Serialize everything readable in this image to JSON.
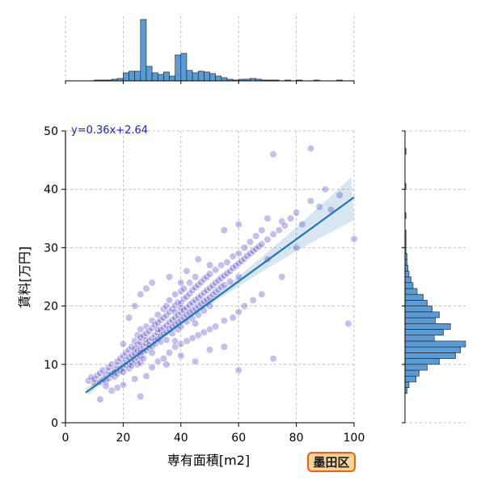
{
  "chart_data": {
    "type": "scatter",
    "xlabel": "専有面積[m2]",
    "ylabel": "賃料[万円]",
    "xlim": [
      0,
      100
    ],
    "ylim": [
      0,
      50
    ],
    "xticks": [
      "0",
      "20",
      "40",
      "60",
      "80",
      "100"
    ],
    "yticks": [
      "0",
      "10",
      "20",
      "30",
      "40",
      "50"
    ],
    "grid": true,
    "regression": {
      "equation": "y=0.36x+2.64",
      "slope": 0.36,
      "intercept": 2.64,
      "x_range": [
        7,
        100
      ]
    },
    "badge": "墨田区",
    "colors": {
      "points": "#3a2fc4",
      "line": "#1f77b4",
      "bars": "#5b9bd5",
      "badge_fill": "#f6d59a",
      "badge_border": "#f06010",
      "equation": "#1f1fbf"
    },
    "x_histogram": {
      "bin_width": 2,
      "bins": [
        {
          "x": 10,
          "count": 1
        },
        {
          "x": 12,
          "count": 1
        },
        {
          "x": 14,
          "count": 1
        },
        {
          "x": 16,
          "count": 2
        },
        {
          "x": 18,
          "count": 3
        },
        {
          "x": 20,
          "count": 10
        },
        {
          "x": 22,
          "count": 12
        },
        {
          "x": 24,
          "count": 12
        },
        {
          "x": 26,
          "count": 76
        },
        {
          "x": 28,
          "count": 18
        },
        {
          "x": 30,
          "count": 10
        },
        {
          "x": 32,
          "count": 8
        },
        {
          "x": 34,
          "count": 11
        },
        {
          "x": 36,
          "count": 6
        },
        {
          "x": 38,
          "count": 32
        },
        {
          "x": 40,
          "count": 34
        },
        {
          "x": 42,
          "count": 13
        },
        {
          "x": 44,
          "count": 10
        },
        {
          "x": 46,
          "count": 12
        },
        {
          "x": 48,
          "count": 11
        },
        {
          "x": 50,
          "count": 9
        },
        {
          "x": 52,
          "count": 6
        },
        {
          "x": 54,
          "count": 4
        },
        {
          "x": 56,
          "count": 2
        },
        {
          "x": 58,
          "count": 1
        },
        {
          "x": 60,
          "count": 2
        },
        {
          "x": 62,
          "count": 2
        },
        {
          "x": 64,
          "count": 3
        },
        {
          "x": 66,
          "count": 2
        },
        {
          "x": 68,
          "count": 1
        },
        {
          "x": 70,
          "count": 1
        },
        {
          "x": 72,
          "count": 1
        },
        {
          "x": 76,
          "count": 1
        },
        {
          "x": 80,
          "count": 1
        },
        {
          "x": 86,
          "count": 1
        },
        {
          "x": 94,
          "count": 1
        }
      ]
    },
    "y_histogram": {
      "bin_width": 1,
      "bins": [
        {
          "y": 5,
          "count": 2
        },
        {
          "y": 6,
          "count": 4
        },
        {
          "y": 7,
          "count": 11
        },
        {
          "y": 8,
          "count": 14
        },
        {
          "y": 9,
          "count": 22
        },
        {
          "y": 10,
          "count": 34
        },
        {
          "y": 11,
          "count": 50
        },
        {
          "y": 12,
          "count": 55
        },
        {
          "y": 13,
          "count": 60
        },
        {
          "y": 14,
          "count": 29
        },
        {
          "y": 15,
          "count": 38
        },
        {
          "y": 16,
          "count": 45
        },
        {
          "y": 17,
          "count": 30
        },
        {
          "y": 18,
          "count": 34
        },
        {
          "y": 19,
          "count": 27
        },
        {
          "y": 20,
          "count": 22
        },
        {
          "y": 21,
          "count": 18
        },
        {
          "y": 22,
          "count": 12
        },
        {
          "y": 23,
          "count": 8
        },
        {
          "y": 24,
          "count": 6
        },
        {
          "y": 25,
          "count": 4
        },
        {
          "y": 26,
          "count": 3
        },
        {
          "y": 27,
          "count": 2
        },
        {
          "y": 28,
          "count": 2
        },
        {
          "y": 29,
          "count": 1
        },
        {
          "y": 30,
          "count": 1
        },
        {
          "y": 31,
          "count": 1
        },
        {
          "y": 32,
          "count": 1
        },
        {
          "y": 35,
          "count": 1
        },
        {
          "y": 40,
          "count": 1
        },
        {
          "y": 46,
          "count": 1
        }
      ]
    },
    "points": [
      [
        8,
        7.2
      ],
      [
        9,
        7.8
      ],
      [
        10,
        6.8
      ],
      [
        10,
        7.5
      ],
      [
        11,
        8.1
      ],
      [
        12,
        7.0
      ],
      [
        12,
        8.5
      ],
      [
        13,
        7.4
      ],
      [
        13,
        9.0
      ],
      [
        14,
        8.2
      ],
      [
        14,
        7.1
      ],
      [
        15,
        8.8
      ],
      [
        15,
        9.5
      ],
      [
        15,
        7.6
      ],
      [
        16,
        8.3
      ],
      [
        16,
        10.0
      ],
      [
        17,
        9.1
      ],
      [
        17,
        7.9
      ],
      [
        17,
        8.6
      ],
      [
        18,
        9.8
      ],
      [
        18,
        10.5
      ],
      [
        18,
        8.4
      ],
      [
        19,
        9.2
      ],
      [
        19,
        11.0
      ],
      [
        19,
        8.9
      ],
      [
        20,
        10.2
      ],
      [
        20,
        9.4
      ],
      [
        20,
        11.5
      ],
      [
        20,
        8.7
      ],
      [
        21,
        10.8
      ],
      [
        21,
        9.9
      ],
      [
        21,
        12.0
      ],
      [
        22,
        11.2
      ],
      [
        22,
        10.1
      ],
      [
        22,
        9.3
      ],
      [
        22,
        12.5
      ],
      [
        23,
        11.6
      ],
      [
        23,
        10.4
      ],
      [
        23,
        13.0
      ],
      [
        23,
        9.8
      ],
      [
        24,
        11.9
      ],
      [
        24,
        12.7
      ],
      [
        24,
        10.6
      ],
      [
        24,
        14.0
      ],
      [
        25,
        12.3
      ],
      [
        25,
        11.1
      ],
      [
        25,
        13.4
      ],
      [
        25,
        10.0
      ],
      [
        25,
        15.0
      ],
      [
        26,
        12.6
      ],
      [
        26,
        13.8
      ],
      [
        26,
        11.4
      ],
      [
        26,
        14.6
      ],
      [
        26,
        10.3
      ],
      [
        26,
        16.0
      ],
      [
        26,
        12.0
      ],
      [
        27,
        13.1
      ],
      [
        27,
        14.9
      ],
      [
        27,
        12.2
      ],
      [
        27,
        11.0
      ],
      [
        28,
        13.5
      ],
      [
        28,
        15.3
      ],
      [
        28,
        12.4
      ],
      [
        28,
        14.2
      ],
      [
        28,
        16.5
      ],
      [
        29,
        14.0
      ],
      [
        29,
        12.8
      ],
      [
        29,
        15.7
      ],
      [
        29,
        13.3
      ],
      [
        30,
        14.5
      ],
      [
        30,
        16.2
      ],
      [
        30,
        13.0
      ],
      [
        30,
        17.5
      ],
      [
        30,
        12.0
      ],
      [
        31,
        15.0
      ],
      [
        31,
        14.1
      ],
      [
        31,
        16.8
      ],
      [
        31,
        13.5
      ],
      [
        32,
        15.4
      ],
      [
        32,
        17.1
      ],
      [
        32,
        14.3
      ],
      [
        32,
        16.0
      ],
      [
        32,
        18.5
      ],
      [
        33,
        15.9
      ],
      [
        33,
        14.8
      ],
      [
        33,
        17.6
      ],
      [
        33,
        13.9
      ],
      [
        34,
        16.3
      ],
      [
        34,
        18.0
      ],
      [
        34,
        15.2
      ],
      [
        34,
        19.5
      ],
      [
        35,
        16.7
      ],
      [
        35,
        15.5
      ],
      [
        35,
        18.4
      ],
      [
        35,
        20.0
      ],
      [
        35,
        14.2
      ],
      [
        36,
        17.2
      ],
      [
        36,
        19.0
      ],
      [
        36,
        16.1
      ],
      [
        36,
        21.0
      ],
      [
        37,
        17.6
      ],
      [
        37,
        16.4
      ],
      [
        37,
        19.5
      ],
      [
        37,
        15.3
      ],
      [
        38,
        18.0
      ],
      [
        38,
        20.1
      ],
      [
        38,
        16.9
      ],
      [
        38,
        22.0
      ],
      [
        38,
        19.0
      ],
      [
        39,
        18.4
      ],
      [
        39,
        17.2
      ],
      [
        39,
        20.6
      ],
      [
        39,
        16.0
      ],
      [
        40,
        18.9
      ],
      [
        40,
        20.5
      ],
      [
        40,
        17.6
      ],
      [
        40,
        22.5
      ],
      [
        40,
        19.7
      ],
      [
        40,
        24.0
      ],
      [
        40,
        16.5
      ],
      [
        41,
        19.3
      ],
      [
        41,
        18.1
      ],
      [
        41,
        21.2
      ],
      [
        41,
        23.0
      ],
      [
        42,
        19.7
      ],
      [
        42,
        21.6
      ],
      [
        42,
        18.5
      ],
      [
        42,
        17.3
      ],
      [
        43,
        20.2
      ],
      [
        43,
        22.1
      ],
      [
        43,
        18.9
      ],
      [
        43,
        24.0
      ],
      [
        44,
        20.6
      ],
      [
        44,
        19.2
      ],
      [
        44,
        22.7
      ],
      [
        44,
        17.8
      ],
      [
        45,
        21.0
      ],
      [
        45,
        23.2
      ],
      [
        45,
        19.6
      ],
      [
        45,
        25.0
      ],
      [
        46,
        21.4
      ],
      [
        46,
        20.0
      ],
      [
        46,
        23.6
      ],
      [
        46,
        18.5
      ],
      [
        47,
        21.8
      ],
      [
        47,
        24.1
      ],
      [
        47,
        20.4
      ],
      [
        48,
        22.3
      ],
      [
        48,
        20.8
      ],
      [
        48,
        24.6
      ],
      [
        48,
        19.2
      ],
      [
        49,
        22.7
      ],
      [
        49,
        25.0
      ],
      [
        49,
        21.1
      ],
      [
        50,
        23.1
      ],
      [
        50,
        21.5
      ],
      [
        50,
        25.5
      ],
      [
        50,
        20.0
      ],
      [
        50,
        27.0
      ],
      [
        51,
        23.5
      ],
      [
        51,
        22.0
      ],
      [
        52,
        24.0
      ],
      [
        52,
        22.4
      ],
      [
        52,
        26.2
      ],
      [
        53,
        24.4
      ],
      [
        53,
        22.8
      ],
      [
        54,
        24.8
      ],
      [
        54,
        23.3
      ],
      [
        54,
        27.0
      ],
      [
        55,
        25.2
      ],
      [
        55,
        23.6
      ],
      [
        56,
        25.6
      ],
      [
        56,
        27.5
      ],
      [
        57,
        26.0
      ],
      [
        57,
        24.2
      ],
      [
        58,
        26.5
      ],
      [
        58,
        28.5
      ],
      [
        59,
        26.9
      ],
      [
        60,
        27.3
      ],
      [
        60,
        29.0
      ],
      [
        60,
        25.0
      ],
      [
        61,
        27.7
      ],
      [
        62,
        28.1
      ],
      [
        62,
        30.0
      ],
      [
        63,
        28.6
      ],
      [
        64,
        29.0
      ],
      [
        64,
        31.0
      ],
      [
        65,
        29.4
      ],
      [
        66,
        29.8
      ],
      [
        66,
        32.0
      ],
      [
        67,
        30.2
      ],
      [
        68,
        30.6
      ],
      [
        68,
        33.0
      ],
      [
        70,
        31.4
      ],
      [
        70,
        35.0
      ],
      [
        72,
        32.3
      ],
      [
        72,
        46.0
      ],
      [
        74,
        33.0
      ],
      [
        75,
        34.5
      ],
      [
        76,
        33.8
      ],
      [
        78,
        35.0
      ],
      [
        80,
        36.0
      ],
      [
        82,
        34.0
      ],
      [
        85,
        38.0
      ],
      [
        85,
        47.0
      ],
      [
        88,
        37.0
      ],
      [
        90,
        40.0
      ],
      [
        92,
        36.5
      ],
      [
        95,
        39.0
      ],
      [
        100,
        31.5
      ],
      [
        30,
        9.5
      ],
      [
        32,
        10.5
      ],
      [
        34,
        11.0
      ],
      [
        36,
        12.0
      ],
      [
        38,
        13.0
      ],
      [
        40,
        13.5
      ],
      [
        42,
        14.0
      ],
      [
        44,
        14.5
      ],
      [
        46,
        15.0
      ],
      [
        48,
        15.5
      ],
      [
        50,
        16.0
      ],
      [
        52,
        16.5
      ],
      [
        55,
        17.5
      ],
      [
        58,
        18.0
      ],
      [
        60,
        19.0
      ],
      [
        62,
        20.0
      ],
      [
        65,
        21.0
      ],
      [
        68,
        22.0
      ],
      [
        72,
        11.0
      ],
      [
        60,
        9.0
      ],
      [
        55,
        13.0
      ],
      [
        50,
        12.5
      ],
      [
        45,
        10.5
      ],
      [
        40,
        11.5
      ],
      [
        35,
        10.0
      ],
      [
        28,
        8.0
      ],
      [
        24,
        7.5
      ],
      [
        20,
        6.5
      ],
      [
        18,
        6.0
      ],
      [
        16,
        5.5
      ],
      [
        22,
        18.0
      ],
      [
        24,
        20.0
      ],
      [
        26,
        22.0
      ],
      [
        28,
        23.0
      ],
      [
        30,
        24.0
      ],
      [
        26,
        4.5
      ],
      [
        12,
        4.0
      ],
      [
        98,
        17.0
      ],
      [
        14,
        6.3
      ],
      [
        20,
        13.5
      ],
      [
        36,
        25.0
      ],
      [
        42,
        26.0
      ],
      [
        46,
        28.0
      ],
      [
        55,
        33.0
      ],
      [
        60,
        34.0
      ],
      [
        70,
        28.0
      ],
      [
        75,
        25.0
      ],
      [
        80,
        30.0
      ],
      [
        45,
        17.0
      ],
      [
        38,
        14.0
      ]
    ]
  }
}
